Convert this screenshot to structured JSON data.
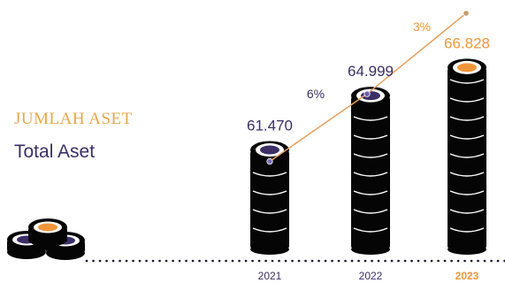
{
  "heading": {
    "title_id": "JUMLAH ASET",
    "title_en": "Total Aset"
  },
  "colors": {
    "navy": "#3b2f66",
    "orange": "#f0963a",
    "gold": "#e8a84a",
    "black": "#050505",
    "line": "#e8a063"
  },
  "icons": [
    "sushi-pile-icon",
    "sushi-stack-icon"
  ],
  "chart_data": {
    "type": "bar",
    "title": "JUMLAH ASET",
    "subtitle": "Total Aset",
    "categories": [
      "2021",
      "2022",
      "2023"
    ],
    "values": [
      61470,
      64999,
      66828
    ],
    "value_labels": [
      "61.470",
      "64.999",
      "66.828"
    ],
    "growth_labels": [
      "6%",
      "3%"
    ],
    "highlight_category": "2023",
    "ylim": [
      55000,
      68000
    ],
    "grid": false,
    "legend": "none"
  }
}
